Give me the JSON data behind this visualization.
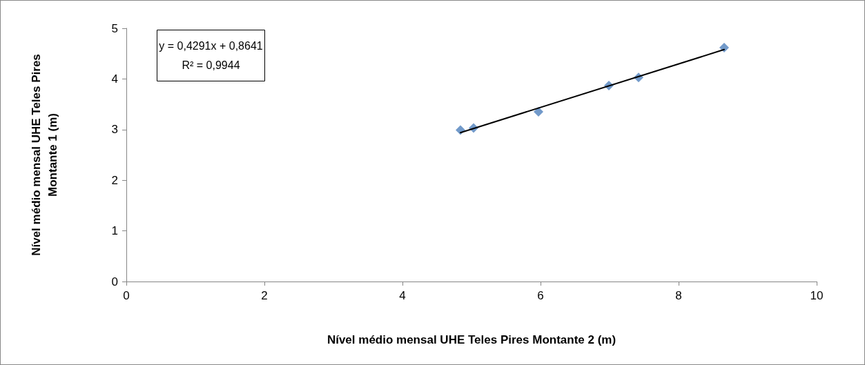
{
  "chart_data": {
    "type": "scatter",
    "xlabel": "Nível médio mensal UHE Teles Pires Montante 2 (m)",
    "ylabel": "Nível médio mensal UHE Teles Pires Montante 1 (m)",
    "xlim": [
      0,
      10
    ],
    "xticks": [
      0,
      2,
      4,
      6,
      8,
      10
    ],
    "ylim": [
      0,
      5
    ],
    "yticks": [
      0,
      1,
      2,
      3,
      4,
      5
    ],
    "grid": false,
    "marker": "diamond",
    "annotations": [
      "y = 0,4291x + 0,8641",
      "R² = 0,9944"
    ],
    "series": [
      {
        "color": "#4f81bd",
        "x": [
          4.84,
          5.03,
          5.97,
          6.99,
          7.42,
          8.66
        ],
        "values": [
          2.99,
          3.03,
          3.35,
          3.87,
          4.03,
          4.62
        ]
      },
      {
        "type": "line",
        "color": "#000000",
        "marker": "none",
        "x": [
          4.84,
          8.66
        ],
        "values": [
          2.94,
          4.58
        ]
      }
    ]
  }
}
